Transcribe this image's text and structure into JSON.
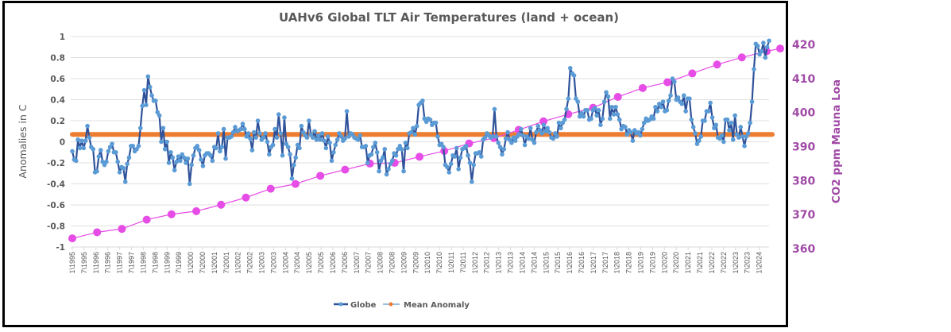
{
  "chart_data": {
    "type": "line",
    "title": "UAHv6 Global TLT Air Temperatures (land + ocean)",
    "xlabel": "",
    "ylabel": "Anomalies in C",
    "y2label": "CO2 ppm Mauna Loa",
    "ylim": [
      -1,
      1
    ],
    "y2lim": [
      360,
      420
    ],
    "grid": true,
    "legend_position": "bottom",
    "yticks": [
      "1",
      "0.8",
      "0.6",
      "0.4",
      "0.2",
      "0",
      "-0.2",
      "-0.4",
      "-0.6",
      "-0.8",
      "-1"
    ],
    "y2ticks": [
      "420",
      "410",
      "400",
      "390",
      "380",
      "370",
      "360"
    ],
    "x_start": "1995-01",
    "x_tick_labels": [
      "1\\1995",
      "7\\1995",
      "1\\1996",
      "7\\1996",
      "1\\1997",
      "7\\1997",
      "1\\1998",
      "7\\1998",
      "1\\1999",
      "7\\1999",
      "1\\2000",
      "7\\2000",
      "1\\2001",
      "7\\2001",
      "1\\2002",
      "7\\2002",
      "1\\2003",
      "7\\2003",
      "1\\2004",
      "7\\2004",
      "1\\2005",
      "7\\2005",
      "1\\2006",
      "7\\2006",
      "1\\2007",
      "7\\2007",
      "1\\2008",
      "7\\2008",
      "1\\2009",
      "7\\2009",
      "1\\2010",
      "7\\2010",
      "1\\2011",
      "7\\2011",
      "1\\2012",
      "7\\2012",
      "1\\2013",
      "7\\2013",
      "1\\2014",
      "7\\2014",
      "1\\2015",
      "7\\2015",
      "1\\2016",
      "7\\2016",
      "1\\2017",
      "7\\2017",
      "1\\2018",
      "7\\2018",
      "1\\2019",
      "7\\2019",
      "1\\2020",
      "7\\2020",
      "1\\2021",
      "7\\2021",
      "1\\2022",
      "7\\2022",
      "1\\2023",
      "7\\2023",
      "1\\2024"
    ],
    "series": [
      {
        "name": "Globe",
        "axis": "left",
        "color": "#2f529a",
        "marker_color": "#5b9bd5",
        "values": [
          -0.09,
          -0.17,
          -0.18,
          0.02,
          -0.06,
          0.01,
          -0.06,
          0.01,
          0.15,
          0.04,
          -0.05,
          -0.07,
          -0.29,
          -0.28,
          -0.14,
          -0.08,
          -0.19,
          -0.22,
          -0.19,
          -0.09,
          -0.05,
          -0.02,
          -0.1,
          -0.1,
          -0.19,
          -0.29,
          -0.24,
          -0.25,
          -0.38,
          -0.21,
          -0.15,
          -0.04,
          -0.04,
          -0.09,
          -0.07,
          -0.04,
          0.13,
          0.34,
          0.49,
          0.35,
          0.62,
          0.52,
          0.44,
          0.39,
          0.39,
          0.28,
          0.25,
          0.0,
          0.13,
          -0.07,
          0.0,
          -0.2,
          -0.1,
          -0.15,
          -0.27,
          -0.19,
          -0.14,
          -0.18,
          -0.12,
          -0.15,
          -0.2,
          -0.16,
          -0.4,
          -0.22,
          -0.13,
          -0.06,
          -0.04,
          -0.08,
          -0.17,
          -0.23,
          -0.13,
          -0.11,
          -0.11,
          -0.13,
          -0.18,
          -0.05,
          -0.06,
          0.08,
          -0.09,
          -0.05,
          0.12,
          -0.16,
          0.04,
          0.04,
          0.05,
          0.09,
          0.14,
          0.1,
          0.11,
          0.12,
          0.17,
          0.12,
          0.05,
          0.08,
          0.03,
          -0.08,
          0.09,
          0.04,
          0.2,
          0.08,
          0.02,
          0.04,
          0.08,
          0.0,
          -0.12,
          -0.05,
          -0.03,
          0.12,
          0.04,
          0.26,
          0.08,
          -0.13,
          0.23,
          -0.02,
          -0.05,
          -0.12,
          -0.35,
          -0.22,
          -0.15,
          -0.03,
          -0.06,
          0.15,
          0.09,
          0.06,
          0.04,
          0.2,
          0.07,
          0.04,
          0.1,
          0.02,
          0.06,
          0.02,
          0.08,
          0.01,
          -0.06,
          0.05,
          -0.01,
          -0.18,
          -0.1,
          -0.03,
          0.02,
          0.08,
          0.05,
          0.01,
          0.03,
          0.29,
          0.05,
          0.08,
          0.07,
          0.04,
          0.03,
          0.02,
          0.06,
          -0.05,
          -0.05,
          -0.04,
          -0.2,
          -0.13,
          -0.12,
          -0.05,
          -0.01,
          -0.1,
          -0.28,
          -0.18,
          -0.15,
          -0.07,
          -0.31,
          -0.26,
          -0.21,
          -0.18,
          -0.11,
          -0.13,
          -0.07,
          -0.04,
          -0.07,
          -0.28,
          -0.01,
          -0.06,
          0.08,
          0.09,
          0.13,
          0.07,
          0.15,
          0.35,
          0.37,
          0.39,
          0.22,
          0.19,
          0.22,
          0.21,
          0.16,
          0.18,
          0.18,
          0.05,
          -0.03,
          -0.02,
          -0.05,
          -0.22,
          -0.24,
          -0.29,
          -0.21,
          -0.13,
          -0.14,
          -0.06,
          -0.26,
          -0.15,
          -0.07,
          -0.06,
          -0.04,
          -0.13,
          -0.2,
          -0.38,
          -0.22,
          -0.11,
          -0.11,
          -0.1,
          -0.14,
          0.02,
          0.04,
          0.08,
          0.06,
          0.04,
          0.05,
          0.31,
          0.05,
          -0.01,
          -0.05,
          -0.12,
          -0.07,
          0.03,
          0.09,
          0.02,
          -0.01,
          0.04,
          0.01,
          0.05,
          0.07,
          0.12,
          0.06,
          -0.03,
          0.05,
          0.03,
          0.13,
          0.02,
          -0.01,
          0.09,
          0.15,
          0.11,
          0.08,
          0.16,
          0.1,
          0.13,
          0.09,
          0.04,
          0.03,
          0.08,
          0.05,
          0.18,
          0.13,
          0.18,
          0.21,
          0.31,
          0.41,
          0.7,
          0.65,
          0.63,
          0.41,
          0.38,
          0.24,
          0.27,
          0.24,
          0.3,
          0.3,
          0.21,
          0.22,
          0.3,
          0.32,
          0.25,
          0.3,
          0.16,
          0.22,
          0.38,
          0.47,
          0.43,
          0.22,
          0.33,
          0.26,
          0.33,
          0.26,
          0.21,
          0.12,
          0.15,
          0.14,
          0.07,
          0.11,
          0.09,
          0.01,
          0.11,
          0.08,
          0.09,
          0.06,
          0.12,
          0.18,
          0.22,
          0.2,
          0.21,
          0.24,
          0.22,
          0.33,
          0.29,
          0.36,
          0.33,
          0.38,
          0.29,
          0.3,
          0.39,
          0.44,
          0.6,
          0.57,
          0.4,
          0.42,
          0.38,
          0.36,
          0.44,
          0.29,
          0.41,
          0.41,
          0.21,
          0.14,
          0.08,
          -0.02,
          0.01,
          0.05,
          0.2,
          0.2,
          0.29,
          0.29,
          0.37,
          0.23,
          0.13,
          0.16,
          0.04,
          0.03,
          0.06,
          0.0,
          0.21,
          0.21,
          0.11,
          0.18,
          0.02,
          0.25,
          0.07,
          0.04,
          0.14,
          0.05,
          -0.04,
          0.05,
          0.08,
          0.18,
          0.38,
          0.69,
          0.93,
          0.91,
          0.83,
          0.86,
          0.94,
          0.8,
          0.9,
          0.96
        ]
      },
      {
        "name": "Mean Anomaly",
        "axis": "left",
        "color": "#ed7d31",
        "constant_value": 0.07
      },
      {
        "name": "CO2 ppm Mauna Loa",
        "axis": "right",
        "color": "#e64ce6",
        "years": [
          1995,
          1996,
          1997,
          1998,
          1999,
          2000,
          2001,
          2002,
          2003,
          2004,
          2005,
          2006,
          2007,
          2008,
          2009,
          2010,
          2011,
          2012,
          2013,
          2014,
          2015,
          2016,
          2017,
          2018,
          2019,
          2020,
          2021,
          2022,
          2023,
          2024
        ],
        "values": [
          363.0,
          364.8,
          365.8,
          368.5,
          370.1,
          371.0,
          372.9,
          375.0,
          377.6,
          379.0,
          381.4,
          383.2,
          385.0,
          385.2,
          387.0,
          388.7,
          390.9,
          392.5,
          394.9,
          397.4,
          399.5,
          401.4,
          404.6,
          407.2,
          408.9,
          411.5,
          414.1,
          416.2,
          418.0,
          418.8
        ]
      }
    ],
    "legend": [
      "Globe",
      "Mean Anomaly"
    ]
  }
}
